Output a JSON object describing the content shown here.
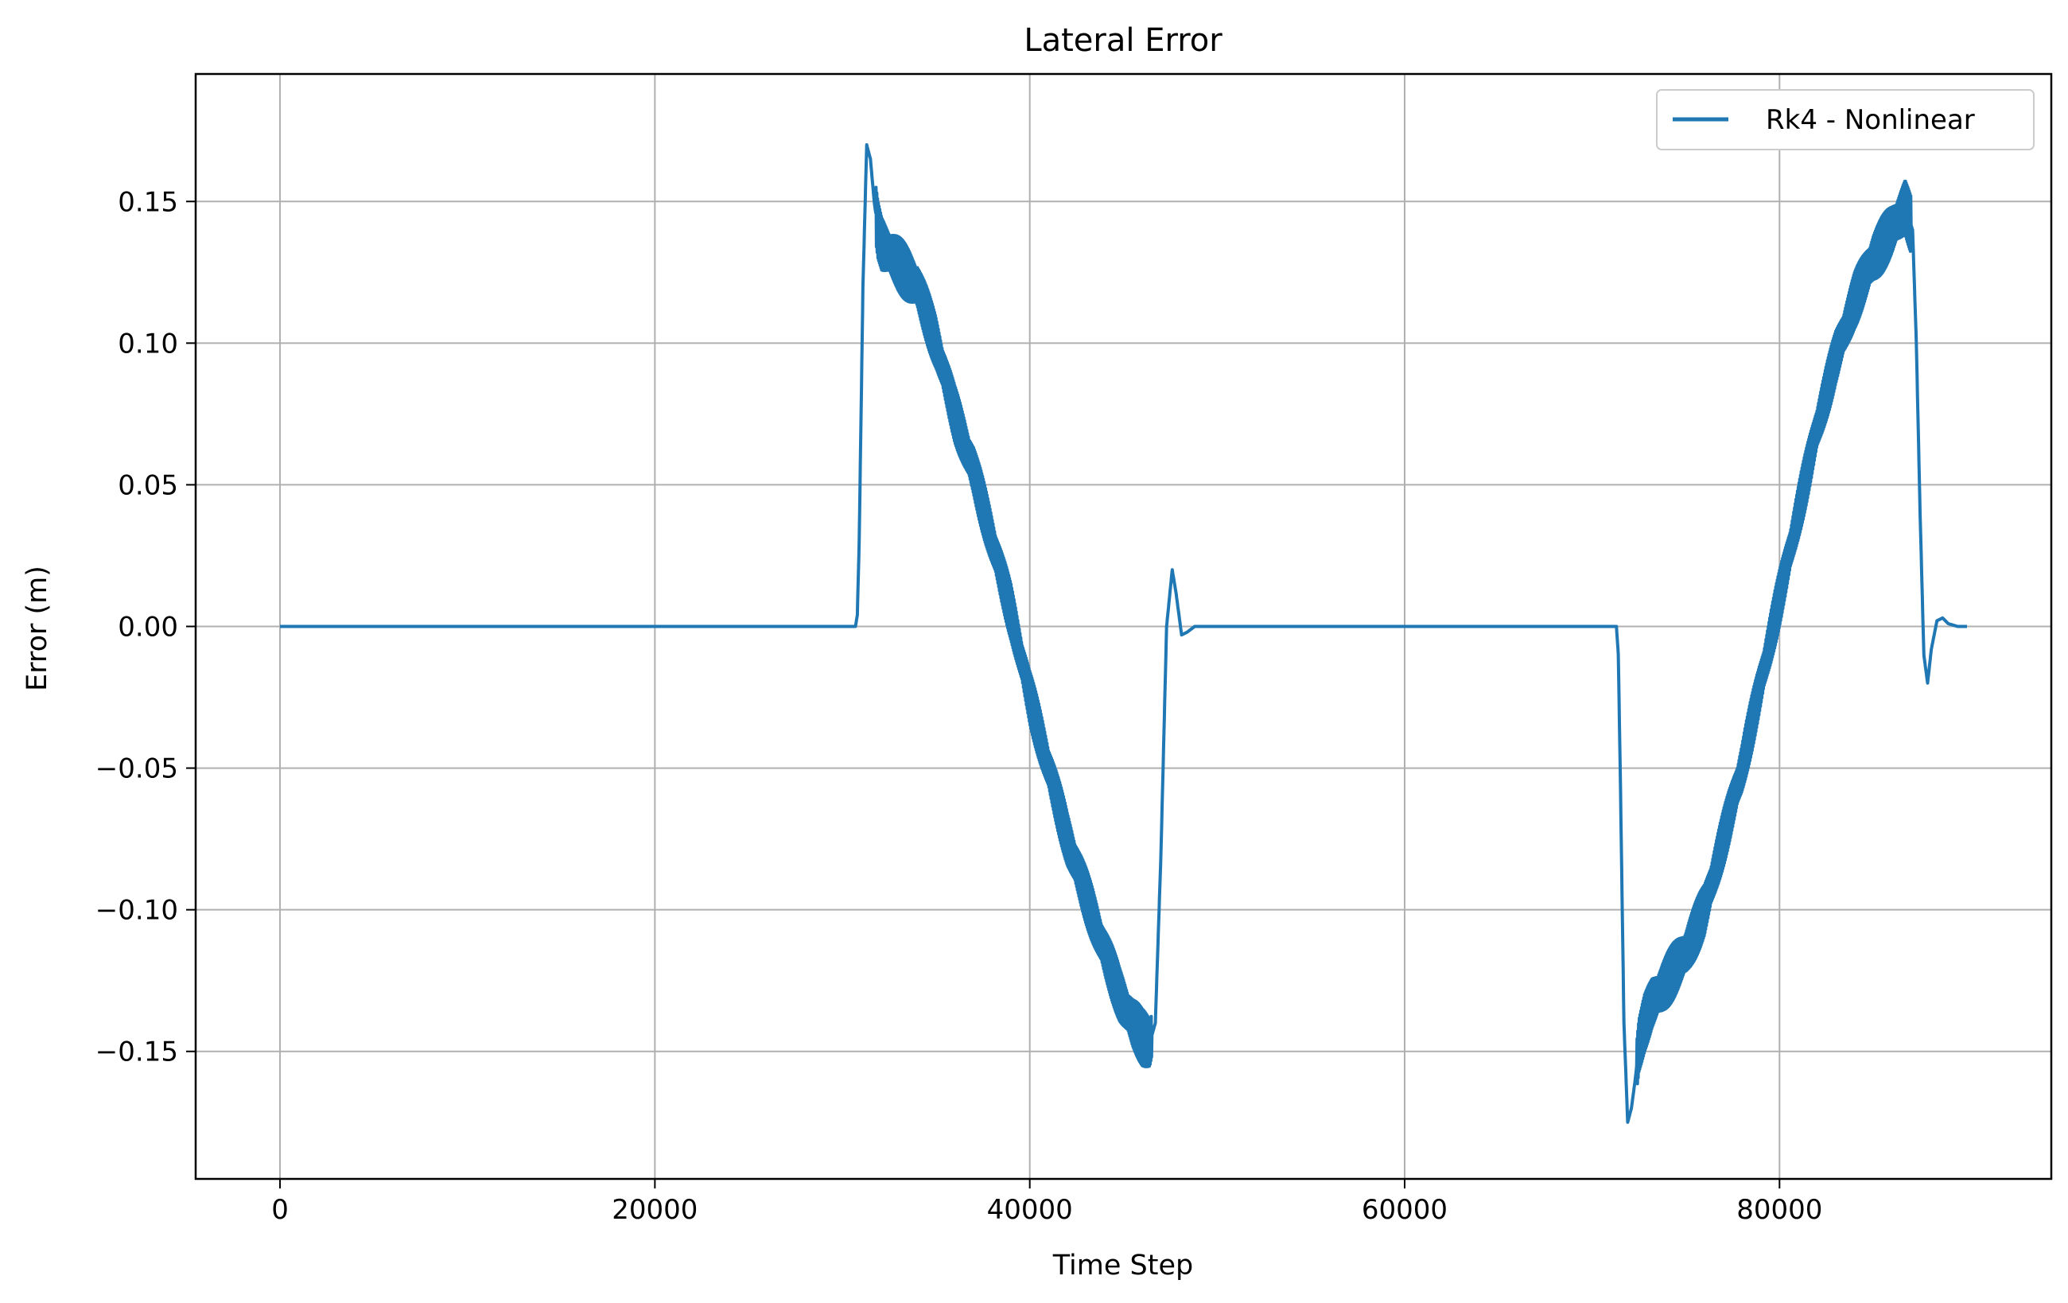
{
  "chart_data": {
    "type": "line",
    "title": "Lateral Error",
    "xlabel": "Time Step",
    "ylabel": "Error (m)",
    "xlim": [
      -4500,
      94500
    ],
    "ylim": [
      -0.195,
      0.195
    ],
    "grid": true,
    "legend": {
      "position": "top-right"
    },
    "x_ticks": [
      0,
      20000,
      40000,
      60000,
      80000
    ],
    "x_tick_labels": [
      "0",
      "20000",
      "40000",
      "60000",
      "80000"
    ],
    "y_ticks": [
      -0.15,
      -0.1,
      -0.05,
      0.0,
      0.05,
      0.1,
      0.15
    ],
    "y_tick_labels": [
      "−0.15",
      "−0.10",
      "−0.05",
      "0.00",
      "0.05",
      "0.10",
      "0.15"
    ],
    "series": [
      {
        "name": "Rk4 - Nonlinear",
        "color": "#1f77b4",
        "x": [
          0,
          30000,
          30700,
          30800,
          30900,
          31100,
          31300,
          31500,
          31700,
          31900,
          32100,
          32500,
          33000,
          34000,
          35000,
          36000,
          37000,
          38000,
          39000,
          40000,
          41000,
          42000,
          43000,
          44000,
          44800,
          45500,
          46000,
          46400,
          46700,
          47000,
          47300,
          47600,
          47800,
          48100,
          48400,
          48800,
          49500,
          50000,
          60000,
          70000,
          71300,
          71400,
          71500,
          71700,
          71900,
          72100,
          72300,
          72500,
          72800,
          73200,
          74000,
          75000,
          76000,
          77000,
          78000,
          79000,
          80000,
          81000,
          82000,
          83000,
          84000,
          85000,
          86000,
          86700,
          87100,
          87300,
          87500,
          87700,
          87900,
          88100,
          88400,
          88700,
          89000,
          89500,
          90000
        ],
        "y": [
          0,
          0,
          0,
          0.004,
          0.03,
          0.12,
          0.17,
          0.165,
          0.15,
          0.14,
          0.135,
          0.132,
          0.128,
          0.12,
          0.1,
          0.075,
          0.055,
          0.03,
          0.005,
          -0.025,
          -0.05,
          -0.075,
          -0.095,
          -0.115,
          -0.13,
          -0.14,
          -0.145,
          -0.147,
          -0.14,
          -0.08,
          0.0,
          0.02,
          0.012,
          -0.003,
          -0.002,
          0.0,
          0.0,
          0,
          0,
          0,
          0,
          -0.01,
          -0.05,
          -0.14,
          -0.175,
          -0.17,
          -0.16,
          -0.148,
          -0.14,
          -0.133,
          -0.125,
          -0.115,
          -0.1,
          -0.075,
          -0.05,
          -0.02,
          0.01,
          0.04,
          0.07,
          0.095,
          0.115,
          0.13,
          0.14,
          0.148,
          0.14,
          0.1,
          0.04,
          -0.01,
          -0.02,
          -0.008,
          0.002,
          0.003,
          0.001,
          0.0,
          0.0
        ],
        "oscillation": {
          "x_range": [
            31800,
            46500
          ],
          "x_range_2": [
            72400,
            87000
          ],
          "amplitude": 0.01
        }
      }
    ]
  }
}
